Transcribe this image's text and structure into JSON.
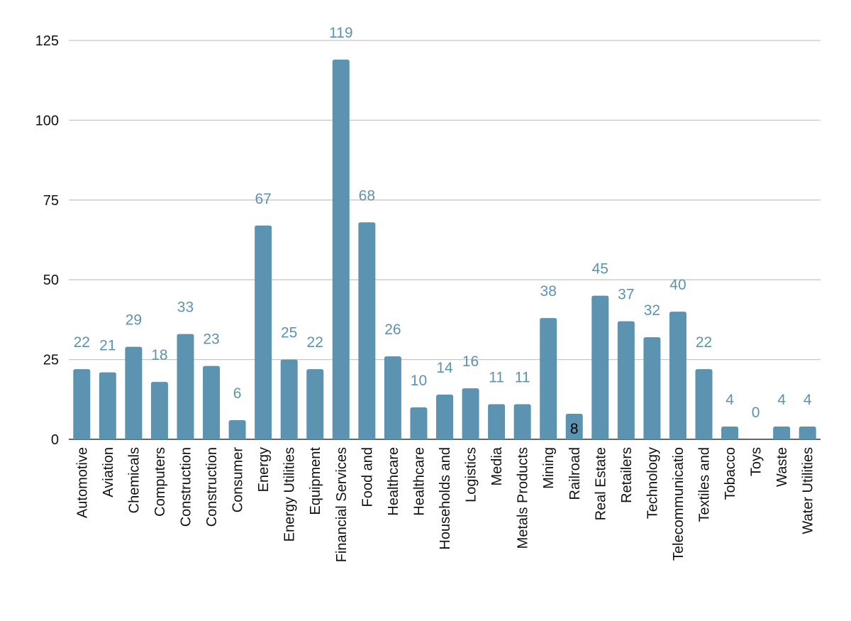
{
  "colors": {
    "bar": "#5b93b0",
    "label": "#5b93b0",
    "label_inside": "#000000",
    "grid": "#c8c8c8"
  },
  "chart_data": {
    "type": "bar",
    "title": "",
    "xlabel": "",
    "ylabel": "",
    "ylim": [
      0,
      125
    ],
    "yticks": [
      0,
      25,
      50,
      75,
      100,
      125
    ],
    "grid": true,
    "legend": "none",
    "categories": [
      "Automotive",
      "Aviation",
      "Chemicals",
      "Computers",
      "Construction",
      "Construction",
      "Consumer",
      "Energy",
      "Energy Utilities",
      "Equipment",
      "Financial Services",
      "Food and",
      "Healthcare",
      "Healthcare",
      "Households and",
      "Logistics",
      "Media",
      "Metals Products",
      "Mining",
      "Railroad",
      "Real Estate",
      "Retailers",
      "Technology",
      "Telecommunicatio",
      "Textiles and",
      "Tobacco",
      "Toys",
      "Waste",
      "Water Utilities"
    ],
    "values": [
      22,
      21,
      29,
      18,
      33,
      23,
      6,
      67,
      25,
      22,
      119,
      68,
      26,
      10,
      14,
      16,
      11,
      11,
      38,
      8,
      45,
      37,
      32,
      40,
      22,
      4,
      0,
      4,
      4
    ],
    "label_inside": [
      false,
      false,
      false,
      false,
      false,
      false,
      false,
      false,
      false,
      false,
      false,
      false,
      false,
      false,
      false,
      false,
      false,
      false,
      false,
      true,
      false,
      false,
      false,
      false,
      false,
      false,
      false,
      false,
      false
    ]
  }
}
